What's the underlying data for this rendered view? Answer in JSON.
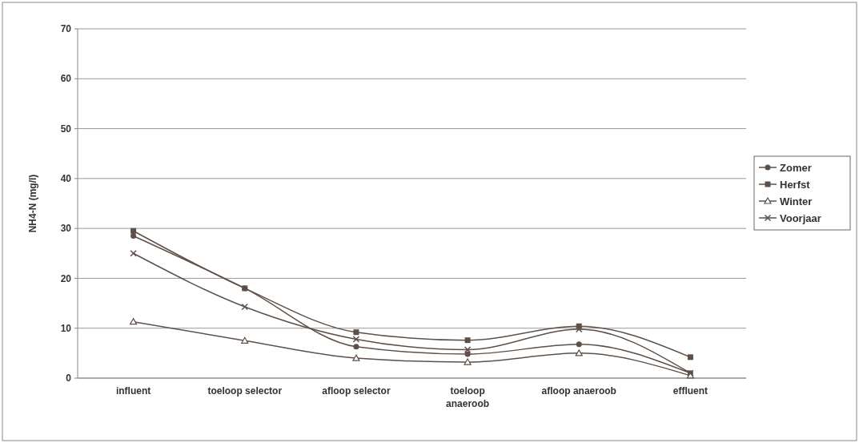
{
  "chart_data": {
    "type": "line",
    "ylabel": "NH4-N (mg/l)",
    "categories": [
      "influent",
      "toeloop selector",
      "afloop selector",
      "toeloop\nanaeroob",
      "afloop anaeroob",
      "effluent"
    ],
    "series": [
      {
        "name": "Zomer",
        "color": "#5e5048",
        "marker": "circle",
        "values": [
          28.5,
          18,
          6.3,
          4.8,
          6.8,
          1
        ]
      },
      {
        "name": "Herfst",
        "color": "#5e5048",
        "marker": "square",
        "values": [
          29.5,
          18,
          9.2,
          7.6,
          10.4,
          4.2
        ]
      },
      {
        "name": "Winter",
        "color": "#5e5048",
        "marker": "triangle",
        "values": [
          11.3,
          7.5,
          4,
          3.2,
          5,
          0.5
        ]
      },
      {
        "name": "Voorjaar",
        "color": "#5e5048",
        "marker": "cross",
        "values": [
          25,
          14.3,
          7.8,
          5.7,
          9.8,
          1
        ]
      }
    ],
    "ylim": [
      0,
      70
    ],
    "yticks": [
      0,
      10,
      20,
      30,
      40,
      50,
      60,
      70
    ],
    "grid": "y",
    "legend": "right"
  }
}
